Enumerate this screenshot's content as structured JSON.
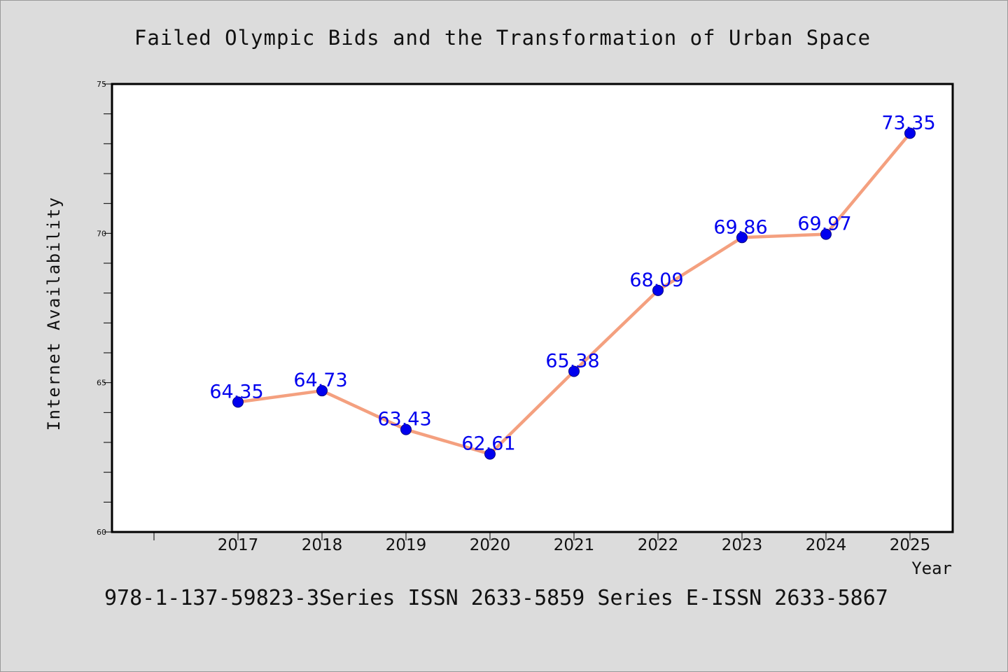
{
  "chart_data": {
    "type": "line",
    "title": "Failed Olympic Bids and the Transformation of Urban Space",
    "xlabel": "Year",
    "ylabel": "Internet Availability",
    "footer": "978-1-137-59823-3Series ISSN 2633-5859 Series E-ISSN 2633-5867",
    "x": [
      "2017",
      "2018",
      "2019",
      "2020",
      "2021",
      "2022",
      "2023",
      "2024",
      "2025"
    ],
    "series": [
      {
        "values": [
          64.35,
          64.73,
          63.43,
          62.61,
          65.38,
          68.09,
          69.86,
          69.97,
          73.35
        ],
        "labels": [
          "64.35",
          "64.73",
          "63.43",
          "62.61",
          "65.38",
          "68.09",
          "69.86",
          "69.97",
          "73.35"
        ]
      }
    ],
    "ylim": [
      60,
      75
    ],
    "yticks": [
      "60",
      "65",
      "70",
      "75"
    ],
    "grid": false,
    "legend": "none",
    "colors": {
      "line": "#f4a07f",
      "marker": "#0000ee",
      "marker_edge": "#000080",
      "data_label": "#0000ee",
      "background": "#dcdcdc",
      "axes": "#000000"
    }
  }
}
